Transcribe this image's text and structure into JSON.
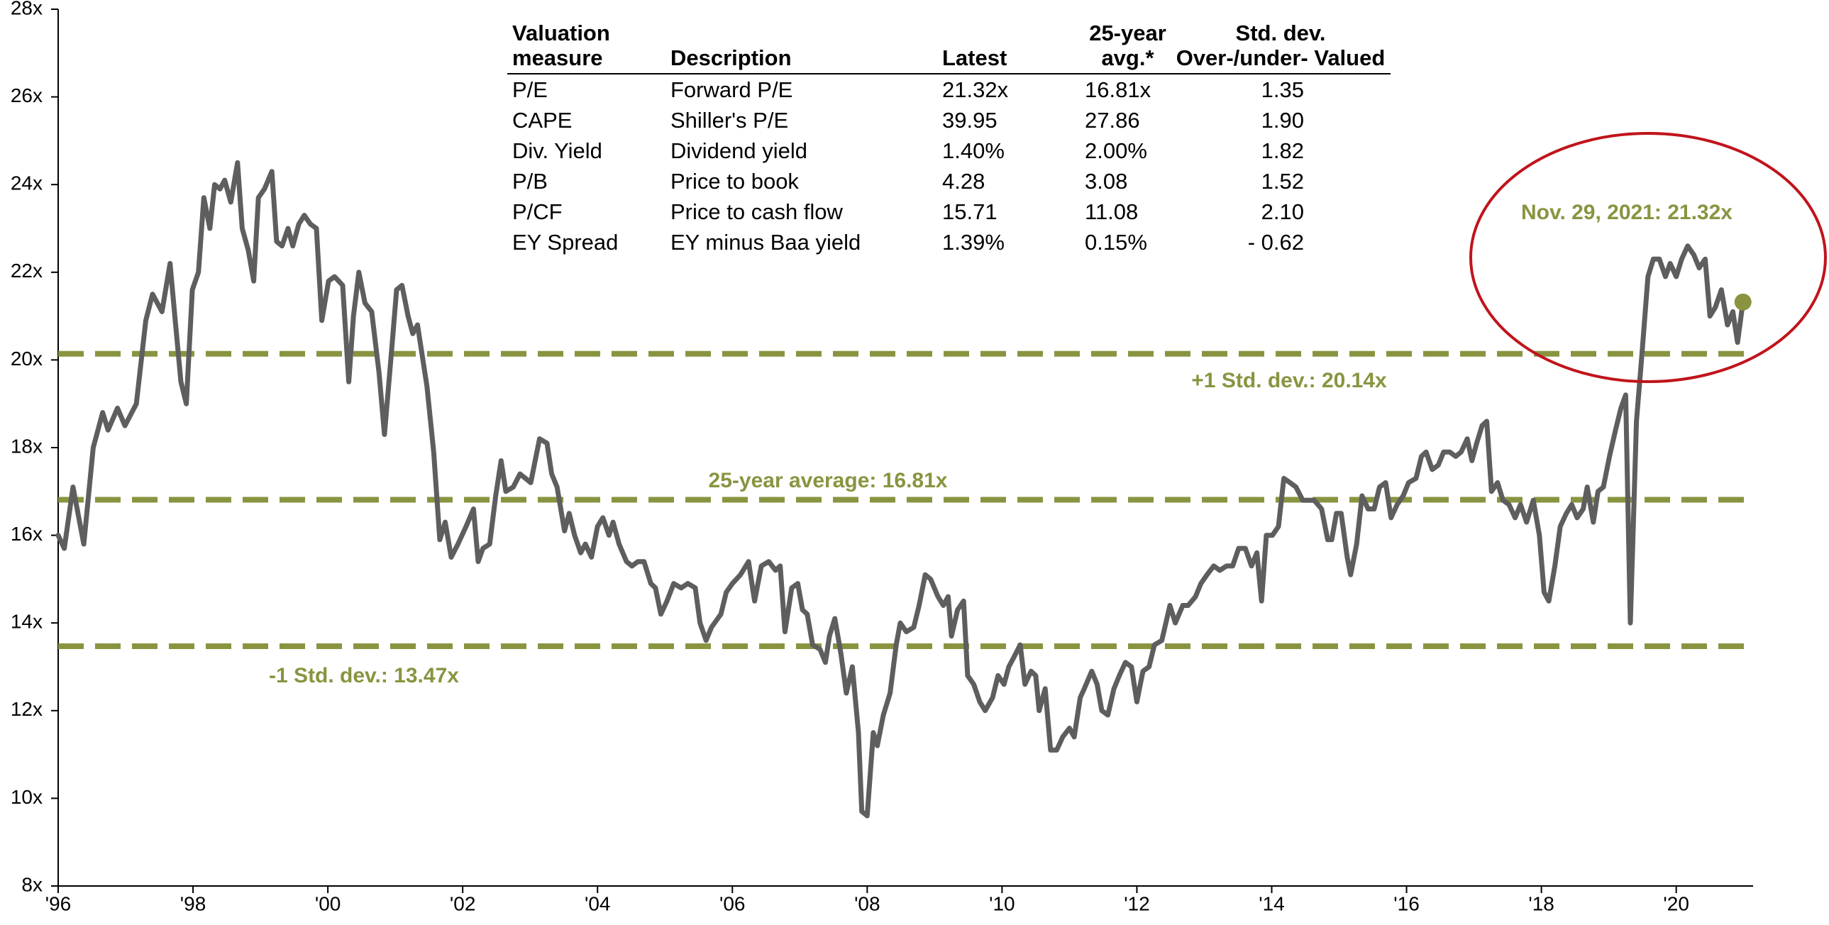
{
  "chart_data": {
    "type": "line",
    "xlim": [
      1996,
      2021.14
    ],
    "xticks": [
      {
        "value": 1996,
        "label": "'96"
      },
      {
        "value": 1998,
        "label": "'98"
      },
      {
        "value": 2000,
        "label": "'00"
      },
      {
        "value": 2002,
        "label": "'02"
      },
      {
        "value": 2004,
        "label": "'04"
      },
      {
        "value": 2006,
        "label": "'06"
      },
      {
        "value": 2008,
        "label": "'08"
      },
      {
        "value": 2010,
        "label": "'10"
      },
      {
        "value": 2012,
        "label": "'12"
      },
      {
        "value": 2014,
        "label": "'14"
      },
      {
        "value": 2016,
        "label": "'16"
      },
      {
        "value": 2018,
        "label": "'18"
      },
      {
        "value": 2020,
        "label": "'20"
      }
    ],
    "ylim": [
      8,
      28
    ],
    "yticks": [
      {
        "value": 8,
        "label": "8x"
      },
      {
        "value": 10,
        "label": "10x"
      },
      {
        "value": 12,
        "label": "12x"
      },
      {
        "value": 14,
        "label": "14x"
      },
      {
        "value": 16,
        "label": "16x"
      },
      {
        "value": 18,
        "label": "18x"
      },
      {
        "value": 20,
        "label": "20x"
      },
      {
        "value": 22,
        "label": "22x"
      },
      {
        "value": 24,
        "label": "24x"
      },
      {
        "value": 26,
        "label": "26x"
      },
      {
        "value": 28,
        "label": "28x"
      }
    ],
    "grid": false,
    "line_color": "#5e5e5e",
    "accent_color": "#8a9440",
    "highlight_color": "#c0141c",
    "x": [
      1996.0,
      1996.09,
      1996.22,
      1996.38,
      1996.52,
      1996.66,
      1996.74,
      1996.88,
      1996.99,
      1997.16,
      1997.3,
      1997.4,
      1997.54,
      1997.66,
      1997.73,
      1997.82,
      1997.9,
      1997.99,
      1998.08,
      1998.16,
      1998.25,
      1998.32,
      1998.4,
      1998.47,
      1998.56,
      1998.66,
      1998.73,
      1998.82,
      1998.9,
      1998.97,
      1999.06,
      1999.17,
      1999.24,
      1999.32,
      1999.41,
      1999.48,
      1999.57,
      1999.65,
      1999.74,
      1999.83,
      1999.91,
      2000.01,
      2000.1,
      2000.22,
      2000.31,
      2000.38,
      2000.46,
      2000.55,
      2000.65,
      2000.76,
      2000.84,
      2000.95,
      2001.02,
      2001.1,
      2001.19,
      2001.26,
      2001.33,
      2001.47,
      2001.57,
      2001.66,
      2001.74,
      2001.83,
      2001.93,
      2002.05,
      2002.16,
      2002.23,
      2002.3,
      2002.4,
      2002.49,
      2002.57,
      2002.64,
      2002.75,
      2002.85,
      2003.01,
      2003.14,
      2003.25,
      2003.32,
      2003.4,
      2003.51,
      2003.58,
      2003.66,
      2003.75,
      2003.82,
      2003.91,
      2004.0,
      2004.08,
      2004.17,
      2004.23,
      2004.32,
      2004.43,
      2004.51,
      2004.6,
      2004.69,
      2004.79,
      2004.86,
      2004.94,
      2005.03,
      2005.13,
      2005.24,
      2005.34,
      2005.45,
      2005.52,
      2005.61,
      2005.69,
      2005.83,
      2005.91,
      2006.0,
      2006.12,
      2006.24,
      2006.33,
      2006.43,
      2006.54,
      2006.64,
      2006.71,
      2006.78,
      2006.88,
      2006.97,
      2007.04,
      2007.11,
      2007.19,
      2007.3,
      2007.38,
      2007.44,
      2007.52,
      2007.61,
      2007.69,
      2007.78,
      2007.87,
      2007.92,
      2008.0,
      2008.09,
      2008.15,
      2008.24,
      2008.34,
      2008.43,
      2008.49,
      2008.58,
      2008.69,
      2008.77,
      2008.86,
      2008.94,
      2009.05,
      2009.13,
      2009.2,
      2009.25,
      2009.34,
      2009.43,
      2009.49,
      2009.58,
      2009.67,
      2009.75,
      2009.86,
      2009.94,
      2010.03,
      2010.1,
      2010.17,
      2010.27,
      2010.34,
      2010.43,
      2010.5,
      2010.55,
      2010.64,
      2010.72,
      2010.81,
      2010.9,
      2011.0,
      2011.07,
      2011.16,
      2011.22,
      2011.33,
      2011.41,
      2011.48,
      2011.57,
      2011.66,
      2011.74,
      2011.83,
      2011.92,
      2012.0,
      2012.09,
      2012.18,
      2012.26,
      2012.37,
      2012.49,
      2012.57,
      2012.68,
      2012.76,
      2012.87,
      2012.95,
      2013.04,
      2013.14,
      2013.23,
      2013.33,
      2013.42,
      2013.51,
      2013.61,
      2013.7,
      2013.78,
      2013.85,
      2013.92,
      2014.01,
      2014.1,
      2014.18,
      2014.27,
      2014.36,
      2014.46,
      2014.55,
      2014.63,
      2014.74,
      2014.83,
      2014.89,
      2014.96,
      2015.03,
      2015.12,
      2015.17,
      2015.26,
      2015.34,
      2015.43,
      2015.52,
      2015.6,
      2015.69,
      2015.77,
      2015.86,
      2015.95,
      2016.03,
      2016.14,
      2016.22,
      2016.29,
      2016.38,
      2016.47,
      2016.55,
      2016.64,
      2016.73,
      2016.81,
      2016.9,
      2016.97,
      2017.04,
      2017.12,
      2017.19,
      2017.26,
      2017.35,
      2017.43,
      2017.52,
      2017.61,
      2017.69,
      2017.78,
      2017.88,
      2017.97,
      2018.04,
      2018.11,
      2018.2,
      2018.28,
      2018.37,
      2018.45,
      2018.53,
      2018.62,
      2018.68,
      2018.77,
      2018.84,
      2018.92,
      2019.01,
      2019.1,
      2019.18,
      2019.25,
      2019.32,
      2019.41,
      2019.49,
      2019.58,
      2019.66,
      2019.75,
      2019.84,
      2019.91,
      2020.0,
      2020.08,
      2020.17,
      2020.26,
      2020.34,
      2020.43,
      2020.5,
      2020.58,
      2020.67,
      2020.76,
      2020.84,
      2020.91,
      2020.99
    ],
    "values": [
      16.0,
      15.7,
      17.1,
      15.8,
      18.0,
      18.8,
      18.4,
      18.9,
      18.5,
      19.0,
      20.9,
      21.5,
      21.1,
      22.2,
      21.0,
      19.5,
      19.0,
      21.6,
      22.0,
      23.7,
      23.0,
      24.0,
      23.9,
      24.1,
      23.6,
      24.5,
      23.0,
      22.5,
      21.8,
      23.7,
      23.9,
      24.3,
      22.7,
      22.6,
      23.0,
      22.6,
      23.1,
      23.3,
      23.1,
      23.0,
      20.9,
      21.8,
      21.9,
      21.7,
      19.5,
      21.0,
      22.0,
      21.3,
      21.1,
      19.7,
      18.3,
      20.3,
      21.6,
      21.7,
      21.0,
      20.6,
      20.8,
      19.4,
      17.9,
      15.9,
      16.3,
      15.5,
      15.8,
      16.2,
      16.6,
      15.4,
      15.7,
      15.8,
      16.9,
      17.7,
      17.0,
      17.1,
      17.4,
      17.2,
      18.2,
      18.1,
      17.4,
      17.1,
      16.1,
      16.5,
      16.0,
      15.6,
      15.8,
      15.5,
      16.2,
      16.4,
      16.0,
      16.3,
      15.8,
      15.4,
      15.3,
      15.4,
      15.4,
      14.9,
      14.8,
      14.2,
      14.5,
      14.9,
      14.8,
      14.9,
      14.8,
      14.0,
      13.6,
      13.9,
      14.2,
      14.7,
      14.9,
      15.1,
      15.4,
      14.5,
      15.3,
      15.4,
      15.2,
      15.3,
      13.8,
      14.8,
      14.9,
      14.3,
      14.2,
      13.5,
      13.4,
      13.1,
      13.7,
      14.1,
      13.3,
      12.4,
      13.0,
      11.5,
      9.7,
      9.6,
      11.5,
      11.2,
      11.9,
      12.4,
      13.5,
      14.0,
      13.8,
      13.9,
      14.4,
      15.1,
      15.0,
      14.6,
      14.4,
      14.6,
      13.7,
      14.3,
      14.5,
      12.8,
      12.6,
      12.2,
      12.0,
      12.3,
      12.8,
      12.6,
      13.0,
      13.2,
      13.5,
      12.6,
      12.9,
      12.8,
      12.0,
      12.5,
      11.1,
      11.1,
      11.4,
      11.6,
      11.4,
      12.3,
      12.5,
      12.9,
      12.6,
      12.0,
      11.9,
      12.5,
      12.8,
      13.1,
      13.0,
      12.2,
      12.9,
      13.0,
      13.5,
      13.6,
      14.4,
      14.0,
      14.4,
      14.4,
      14.6,
      14.9,
      15.1,
      15.3,
      15.2,
      15.3,
      15.3,
      15.7,
      15.7,
      15.3,
      15.6,
      14.5,
      16.0,
      16.0,
      16.2,
      17.3,
      17.2,
      17.1,
      16.8,
      16.8,
      16.8,
      16.6,
      15.9,
      15.9,
      16.5,
      16.5,
      15.5,
      15.1,
      15.8,
      16.9,
      16.6,
      16.6,
      17.1,
      17.2,
      16.4,
      16.7,
      16.9,
      17.2,
      17.3,
      17.8,
      17.9,
      17.5,
      17.6,
      17.9,
      17.9,
      17.8,
      17.9,
      18.2,
      17.7,
      18.1,
      18.5,
      18.6,
      17.0,
      17.2,
      16.8,
      16.7,
      16.4,
      16.7,
      16.3,
      16.8,
      16.0,
      14.7,
      14.5,
      15.3,
      16.2,
      16.5,
      16.7,
      16.4,
      16.6,
      17.1,
      16.3,
      17.0,
      17.1,
      17.8,
      18.4,
      18.9,
      19.2,
      14.0,
      18.6,
      20.1,
      21.9,
      22.3,
      22.3,
      21.9,
      22.2,
      21.9,
      22.3,
      22.6,
      22.4,
      22.1,
      22.3,
      21.0,
      21.2,
      21.6,
      20.8,
      21.1,
      20.4,
      21.32
    ],
    "reference_lines": [
      {
        "value": 20.14,
        "label": "+1 Std. dev.: 20.14x"
      },
      {
        "value": 16.81,
        "label": "25-year average: 16.81x"
      },
      {
        "value": 13.47,
        "label": "-1 Std. dev.: 13.47x"
      }
    ],
    "annotation": "Nov. 29, 2021: 21.32x",
    "table": {
      "columns": [
        "Valuation measure",
        "Description",
        "Latest",
        "25-year avg.*",
        "Std. dev. Over-/under- Valued"
      ],
      "rows": [
        [
          "P/E",
          "Forward P/E",
          "21.32x",
          "16.81x",
          "1.35"
        ],
        [
          "CAPE",
          "Shiller's P/E",
          "39.95",
          "27.86",
          "1.90"
        ],
        [
          "Div. Yield",
          "Dividend yield",
          "1.40%",
          "2.00%",
          "1.82"
        ],
        [
          "P/B",
          "Price to book",
          "4.28",
          "3.08",
          "1.52"
        ],
        [
          "P/CF",
          "Price to cash flow",
          "15.71",
          "11.08",
          "2.10"
        ],
        [
          "EY Spread",
          "EY minus Baa yield",
          "1.39%",
          "0.15%",
          "- 0.62"
        ]
      ]
    }
  }
}
